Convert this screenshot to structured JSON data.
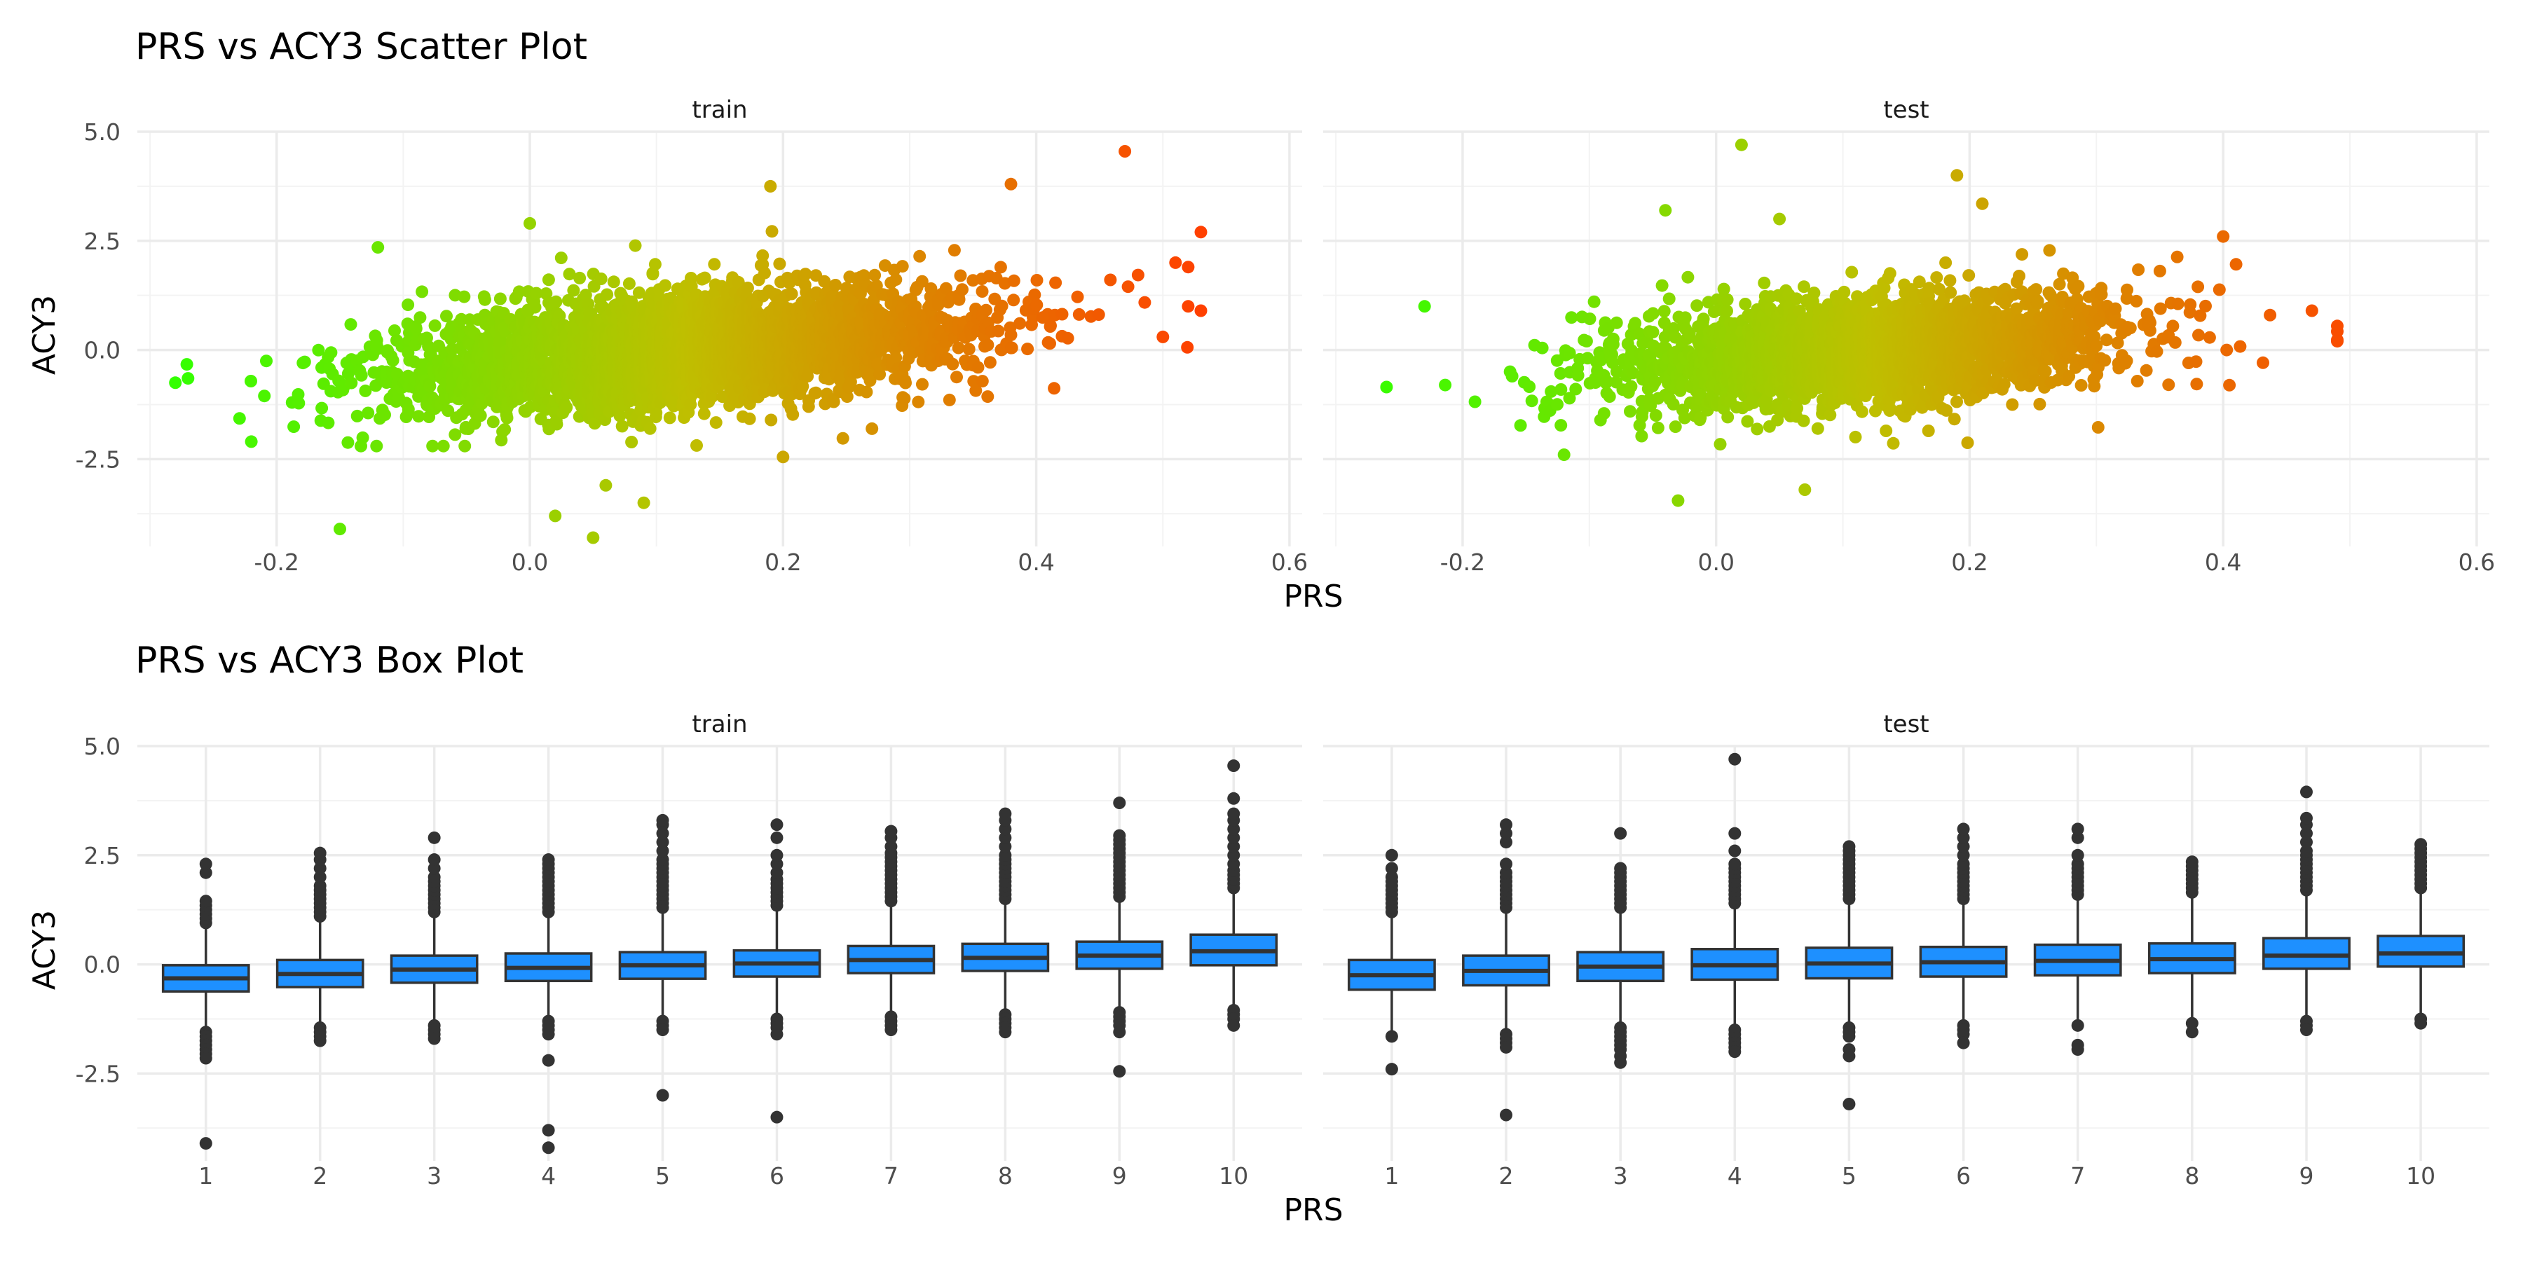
{
  "chart_data": [
    {
      "id": "scatter",
      "type": "scatter",
      "title": "PRS vs ACY3 Scatter Plot",
      "xlabel": "PRS",
      "ylabel": "ACY3",
      "xlim": [
        -0.31,
        0.61
      ],
      "ylim": [
        -4.5,
        5.0
      ],
      "x_ticks": [
        -0.2,
        0.0,
        0.2,
        0.4,
        0.6
      ],
      "x_tick_labels": [
        "-0.2",
        "0.0",
        "0.2",
        "0.4",
        "0.6"
      ],
      "y_ticks": [
        -2.5,
        0.0,
        2.5,
        5.0
      ],
      "y_tick_labels": [
        "-2.5",
        "0.0",
        "2.5",
        "5.0"
      ],
      "grid": true,
      "color_gradient": [
        "#33ff00",
        "#bfbf00",
        "#ff4000"
      ],
      "trend": {
        "slope": 2.2
      },
      "panels": [
        {
          "name": "train",
          "x_range": [
            -0.28,
            0.53
          ],
          "cloud": {
            "n": 3800,
            "x_mean": 0.12,
            "x_sd": 0.11,
            "y_sd": 0.52
          },
          "extremes": [
            {
              "x": -0.28,
              "y": -0.75
            },
            {
              "x": -0.27,
              "y": -0.65
            },
            {
              "x": -0.22,
              "y": -2.1
            },
            {
              "x": -0.15,
              "y": -4.1
            },
            {
              "x": -0.12,
              "y": 2.35
            },
            {
              "x": 0.0,
              "y": 2.9
            },
            {
              "x": 0.02,
              "y": -3.8
            },
            {
              "x": 0.05,
              "y": -4.3
            },
            {
              "x": 0.06,
              "y": -3.1
            },
            {
              "x": 0.09,
              "y": -3.5
            },
            {
              "x": 0.2,
              "y": -2.45
            },
            {
              "x": 0.19,
              "y": 3.75
            },
            {
              "x": 0.38,
              "y": 3.8
            },
            {
              "x": 0.47,
              "y": 4.55
            },
            {
              "x": 0.51,
              "y": 2.0
            },
            {
              "x": 0.52,
              "y": 1.9
            },
            {
              "x": 0.53,
              "y": 2.7
            },
            {
              "x": 0.52,
              "y": 1.0
            },
            {
              "x": 0.53,
              "y": 0.9
            },
            {
              "x": 0.5,
              "y": 0.3
            }
          ]
        },
        {
          "name": "test",
          "x_range": [
            -0.26,
            0.49
          ],
          "cloud": {
            "n": 2600,
            "x_mean": 0.12,
            "x_sd": 0.1,
            "y_sd": 0.5
          },
          "extremes": [
            {
              "x": -0.26,
              "y": -0.85
            },
            {
              "x": -0.23,
              "y": 1.0
            },
            {
              "x": -0.12,
              "y": -2.4
            },
            {
              "x": -0.03,
              "y": -3.45
            },
            {
              "x": -0.04,
              "y": 3.2
            },
            {
              "x": 0.02,
              "y": 4.7
            },
            {
              "x": 0.07,
              "y": -3.2
            },
            {
              "x": 0.05,
              "y": 3.0
            },
            {
              "x": 0.19,
              "y": 4.0
            },
            {
              "x": 0.21,
              "y": 3.35
            },
            {
              "x": 0.4,
              "y": 2.6
            },
            {
              "x": 0.49,
              "y": 0.55
            },
            {
              "x": 0.49,
              "y": 0.2
            },
            {
              "x": 0.47,
              "y": 0.9
            }
          ]
        }
      ]
    },
    {
      "id": "box",
      "type": "box",
      "title": "PRS vs ACY3 Box Plot",
      "xlabel": "PRS",
      "ylabel": "ACY3",
      "ylim": [
        -4.5,
        5.0
      ],
      "y_ticks": [
        -2.5,
        0.0,
        2.5,
        5.0
      ],
      "y_tick_labels": [
        "-2.5",
        "0.0",
        "2.5",
        "5.0"
      ],
      "categories": [
        "1",
        "2",
        "3",
        "4",
        "5",
        "6",
        "7",
        "8",
        "9",
        "10"
      ],
      "box_color": "#1e90ff",
      "grid": true,
      "panels": [
        {
          "name": "train",
          "boxes": [
            {
              "q1": -0.62,
              "median": -0.32,
              "q3": -0.02,
              "whisker_low": -1.5,
              "whisker_high": 0.85,
              "outliers_high": [
                0.95,
                1.05,
                1.15,
                1.25,
                1.35,
                1.45,
                2.1,
                2.3
              ],
              "outliers_low": [
                -1.55,
                -1.65,
                -1.75,
                -1.85,
                -1.95,
                -2.05,
                -2.15,
                -4.1
              ]
            },
            {
              "q1": -0.52,
              "median": -0.22,
              "q3": 0.1,
              "whisker_low": -1.4,
              "whisker_high": 1.0,
              "outliers_high": [
                1.1,
                1.2,
                1.3,
                1.4,
                1.5,
                1.6,
                1.7,
                1.8,
                2.0,
                2.2,
                2.4,
                2.55
              ],
              "outliers_low": [
                -1.45,
                -1.55,
                -1.65,
                -1.75
              ]
            },
            {
              "q1": -0.42,
              "median": -0.12,
              "q3": 0.2,
              "whisker_low": -1.35,
              "whisker_high": 1.1,
              "outliers_high": [
                1.2,
                1.3,
                1.4,
                1.5,
                1.6,
                1.7,
                1.8,
                1.9,
                2.0,
                2.2,
                2.4,
                2.9
              ],
              "outliers_low": [
                -1.4,
                -1.5,
                -1.6,
                -1.7
              ]
            },
            {
              "q1": -0.38,
              "median": -0.08,
              "q3": 0.25,
              "whisker_low": -1.25,
              "whisker_high": 1.1,
              "outliers_high": [
                1.2,
                1.3,
                1.4,
                1.5,
                1.6,
                1.7,
                1.8,
                1.9,
                2.0,
                2.1,
                2.2,
                2.3,
                2.4
              ],
              "outliers_low": [
                -1.3,
                -1.4,
                -1.5,
                -1.6,
                -2.2,
                -3.8,
                -4.2
              ]
            },
            {
              "q1": -0.33,
              "median": -0.02,
              "q3": 0.28,
              "whisker_low": -1.25,
              "whisker_high": 1.2,
              "outliers_high": [
                1.3,
                1.4,
                1.5,
                1.6,
                1.7,
                1.8,
                1.9,
                2.0,
                2.1,
                2.2,
                2.3,
                2.4,
                2.6,
                2.8,
                3.0,
                3.2,
                3.3
              ],
              "outliers_low": [
                -1.3,
                -1.4,
                -1.5,
                -3.0
              ]
            },
            {
              "q1": -0.28,
              "median": 0.02,
              "q3": 0.32,
              "whisker_low": -1.2,
              "whisker_high": 1.25,
              "outliers_high": [
                1.35,
                1.45,
                1.55,
                1.65,
                1.75,
                1.85,
                1.95,
                2.1,
                2.3,
                2.5,
                2.9,
                3.2
              ],
              "outliers_low": [
                -1.25,
                -1.35,
                -1.45,
                -1.6,
                -3.5
              ]
            },
            {
              "q1": -0.2,
              "median": 0.1,
              "q3": 0.42,
              "whisker_low": -1.1,
              "whisker_high": 1.35,
              "outliers_high": [
                1.45,
                1.55,
                1.65,
                1.75,
                1.85,
                1.95,
                2.05,
                2.15,
                2.25,
                2.35,
                2.45,
                2.55,
                2.7,
                2.9,
                3.05
              ],
              "outliers_low": [
                -1.2,
                -1.3,
                -1.4,
                -1.5
              ]
            },
            {
              "q1": -0.15,
              "median": 0.15,
              "q3": 0.47,
              "whisker_low": -1.05,
              "whisker_high": 1.4,
              "outliers_high": [
                1.5,
                1.6,
                1.7,
                1.8,
                1.9,
                2.0,
                2.1,
                2.2,
                2.3,
                2.4,
                2.5,
                2.7,
                2.9,
                3.1,
                3.3,
                3.45
              ],
              "outliers_low": [
                -1.15,
                -1.25,
                -1.35,
                -1.45,
                -1.55
              ]
            },
            {
              "q1": -0.1,
              "median": 0.2,
              "q3": 0.52,
              "whisker_low": -1.0,
              "whisker_high": 1.45,
              "outliers_high": [
                1.55,
                1.65,
                1.75,
                1.85,
                1.95,
                2.05,
                2.15,
                2.25,
                2.35,
                2.45,
                2.55,
                2.65,
                2.75,
                2.85,
                2.95,
                3.7
              ],
              "outliers_low": [
                -1.1,
                -1.2,
                -1.3,
                -1.4,
                -1.55,
                -2.45
              ]
            },
            {
              "q1": -0.02,
              "median": 0.3,
              "q3": 0.68,
              "whisker_low": -0.95,
              "whisker_high": 1.65,
              "outliers_high": [
                1.75,
                1.85,
                1.95,
                2.05,
                2.15,
                2.3,
                2.5,
                2.7,
                2.9,
                3.1,
                3.3,
                3.45,
                3.8,
                4.55
              ],
              "outliers_low": [
                -1.05,
                -1.15,
                -1.25,
                -1.4
              ]
            }
          ]
        },
        {
          "name": "test",
          "boxes": [
            {
              "q1": -0.58,
              "median": -0.25,
              "q3": 0.1,
              "whisker_low": -1.55,
              "whisker_high": 1.1,
              "outliers_high": [
                1.2,
                1.3,
                1.4,
                1.5,
                1.6,
                1.7,
                1.8,
                1.9,
                2.0,
                2.2,
                2.5
              ],
              "outliers_low": [
                -1.65,
                -2.4
              ]
            },
            {
              "q1": -0.48,
              "median": -0.15,
              "q3": 0.2,
              "whisker_low": -1.5,
              "whisker_high": 1.2,
              "outliers_high": [
                1.3,
                1.4,
                1.5,
                1.6,
                1.7,
                1.8,
                1.9,
                2.0,
                2.1,
                2.3,
                2.8,
                3.0,
                3.2
              ],
              "outliers_low": [
                -1.6,
                -1.7,
                -1.8,
                -1.9,
                -3.45
              ]
            },
            {
              "q1": -0.38,
              "median": -0.05,
              "q3": 0.28,
              "whisker_low": -1.35,
              "whisker_high": 1.2,
              "outliers_high": [
                1.3,
                1.4,
                1.5,
                1.6,
                1.7,
                1.8,
                1.9,
                2.0,
                2.1,
                2.2,
                3.0
              ],
              "outliers_low": [
                -1.45,
                -1.55,
                -1.65,
                -1.75,
                -1.85,
                -1.95,
                -2.1,
                -2.25
              ]
            },
            {
              "q1": -0.35,
              "median": -0.02,
              "q3": 0.35,
              "whisker_low": -1.4,
              "whisker_high": 1.3,
              "outliers_high": [
                1.4,
                1.5,
                1.6,
                1.7,
                1.8,
                1.9,
                2.0,
                2.1,
                2.2,
                2.3,
                2.6,
                3.0,
                4.7
              ],
              "outliers_low": [
                -1.5,
                -1.6,
                -1.7,
                -1.8,
                -1.9,
                -2.0
              ]
            },
            {
              "q1": -0.32,
              "median": 0.02,
              "q3": 0.38,
              "whisker_low": -1.35,
              "whisker_high": 1.4,
              "outliers_high": [
                1.5,
                1.6,
                1.7,
                1.8,
                1.9,
                2.0,
                2.1,
                2.2,
                2.3,
                2.4,
                2.5,
                2.6,
                2.7
              ],
              "outliers_low": [
                -1.45,
                -1.55,
                -1.65,
                -1.95,
                -2.1,
                -3.2
              ]
            },
            {
              "q1": -0.28,
              "median": 0.05,
              "q3": 0.4,
              "whisker_low": -1.3,
              "whisker_high": 1.4,
              "outliers_high": [
                1.5,
                1.6,
                1.7,
                1.8,
                1.9,
                2.0,
                2.1,
                2.2,
                2.3,
                2.5,
                2.7,
                2.9,
                3.1
              ],
              "outliers_low": [
                -1.4,
                -1.5,
                -1.6,
                -1.8
              ]
            },
            {
              "q1": -0.25,
              "median": 0.08,
              "q3": 0.45,
              "whisker_low": -1.3,
              "whisker_high": 1.5,
              "outliers_high": [
                1.6,
                1.7,
                1.8,
                1.9,
                2.0,
                2.1,
                2.2,
                2.3,
                2.5,
                2.9,
                3.1
              ],
              "outliers_low": [
                -1.4,
                -1.85,
                -1.95
              ]
            },
            {
              "q1": -0.2,
              "median": 0.12,
              "q3": 0.48,
              "whisker_low": -1.25,
              "whisker_high": 1.55,
              "outliers_high": [
                1.65,
                1.75,
                1.85,
                1.95,
                2.05,
                2.15,
                2.25,
                2.35
              ],
              "outliers_low": [
                -1.35,
                -1.55
              ]
            },
            {
              "q1": -0.1,
              "median": 0.2,
              "q3": 0.6,
              "whisker_low": -1.2,
              "whisker_high": 1.6,
              "outliers_high": [
                1.7,
                1.8,
                1.9,
                2.0,
                2.1,
                2.2,
                2.3,
                2.4,
                2.5,
                2.6,
                2.8,
                3.0,
                3.2,
                3.35,
                3.95
              ],
              "outliers_low": [
                -1.3,
                -1.4,
                -1.5
              ]
            },
            {
              "q1": -0.05,
              "median": 0.25,
              "q3": 0.65,
              "whisker_low": -1.15,
              "whisker_high": 1.65,
              "outliers_high": [
                1.75,
                1.85,
                1.95,
                2.05,
                2.15,
                2.25,
                2.35,
                2.45,
                2.55,
                2.65,
                2.75
              ],
              "outliers_low": [
                -1.25,
                -1.35
              ]
            }
          ]
        }
      ]
    }
  ]
}
